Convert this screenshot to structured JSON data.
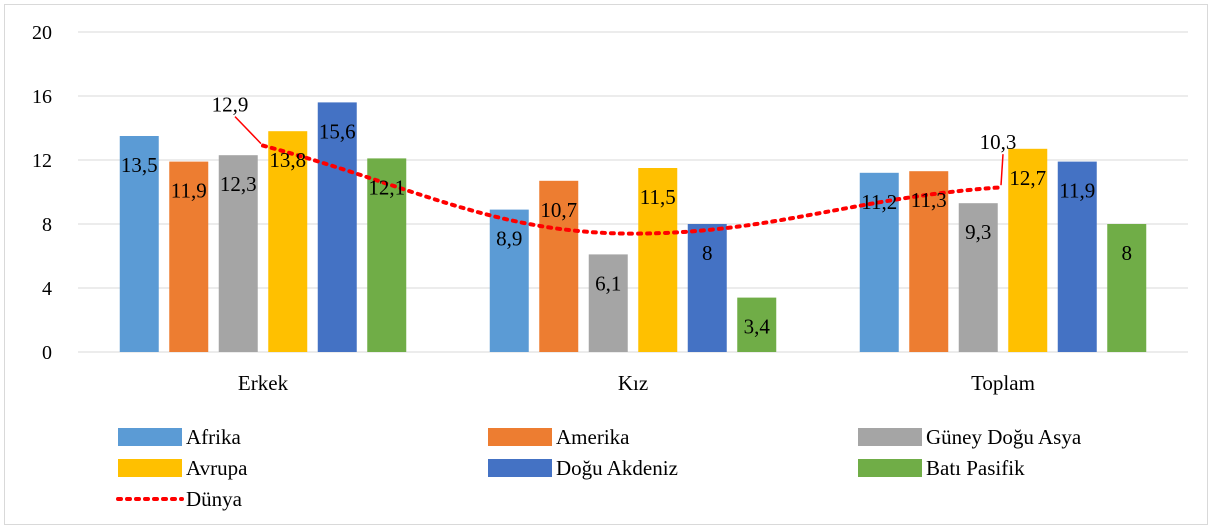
{
  "chart_data": {
    "type": "bar",
    "categories": [
      "Erkek",
      "Kız",
      "Toplam"
    ],
    "ylim": [
      0,
      20
    ],
    "yticks": [
      0,
      4,
      8,
      12,
      16,
      20
    ],
    "grid": true,
    "legend_position": "bottom",
    "series": [
      {
        "name": "Afrika",
        "color": "#5B9BD5",
        "values": [
          13.5,
          8.9,
          11.2
        ],
        "labels": [
          "13,5",
          "8,9",
          "11,2"
        ]
      },
      {
        "name": "Amerika",
        "color": "#ED7D31",
        "values": [
          11.9,
          10.7,
          11.3
        ],
        "labels": [
          "11,9",
          "10,7",
          "11,3"
        ]
      },
      {
        "name": "Güney Doğu Asya",
        "color": "#A5A5A5",
        "values": [
          12.3,
          6.1,
          9.3
        ],
        "labels": [
          "12,3",
          "6,1",
          "9,3"
        ]
      },
      {
        "name": "Avrupa",
        "color": "#FFC000",
        "values": [
          13.8,
          11.5,
          12.7
        ],
        "labels": [
          "13,8",
          "11,5",
          "12,7"
        ]
      },
      {
        "name": "Doğu Akdeniz",
        "color": "#4472C4",
        "values": [
          15.6,
          8.0,
          11.9
        ],
        "labels": [
          "15,6",
          "8",
          "11,9"
        ]
      },
      {
        "name": "Batı Pasifik",
        "color": "#70AD47",
        "values": [
          12.1,
          3.4,
          8.0
        ],
        "labels": [
          "12,1",
          "3,4",
          "8"
        ]
      }
    ],
    "line_series": {
      "name": "Dünya",
      "color": "#FF0000",
      "style": "dotted",
      "values": [
        12.9,
        7.4,
        10.3
      ],
      "labels": [
        "12,9",
        "",
        "10,3"
      ]
    }
  }
}
